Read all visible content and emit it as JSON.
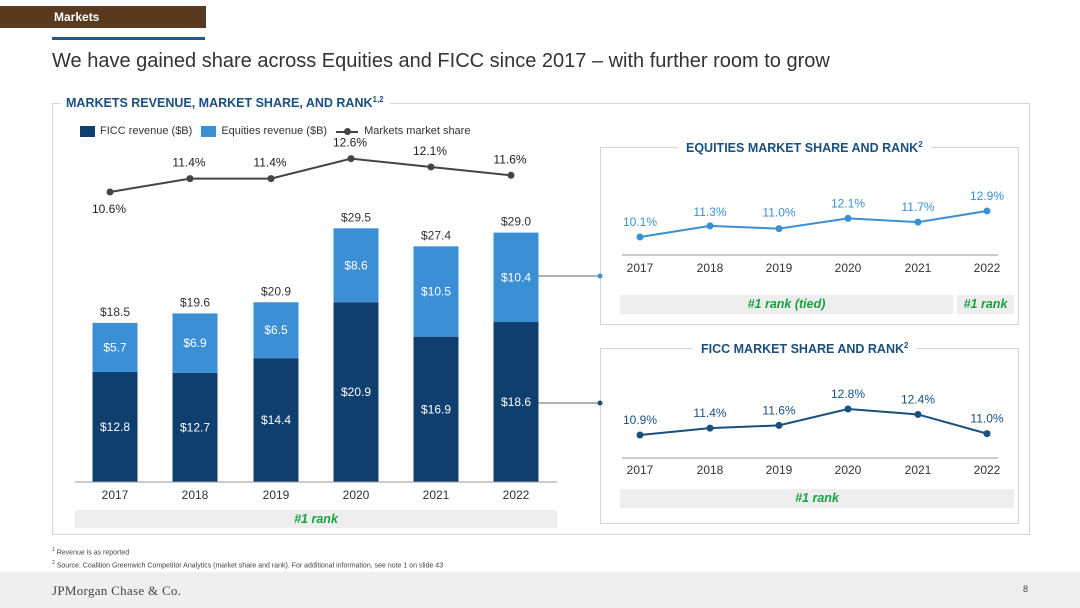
{
  "header": {
    "section": "Markets",
    "title": "We have gained share across Equities and FICC since 2017 – with further room to grow"
  },
  "main_panel": {
    "title": "MARKETS REVENUE, MARKET SHARE, AND RANK",
    "title_sup": "1,2",
    "legend": [
      "FICC revenue ($B)",
      "Equities revenue ($B)",
      "Markets market share"
    ],
    "rank": "#1 rank"
  },
  "equities_panel": {
    "title": "EQUITIES MARKET SHARE AND RANK",
    "title_sup": "2",
    "rank_tied": "#1 rank (tied)",
    "rank": "#1 rank"
  },
  "ficc_panel": {
    "title": "FICC MARKET SHARE AND RANK",
    "title_sup": "2",
    "rank": "#1 rank"
  },
  "chart_data": [
    {
      "type": "bar",
      "stacked": true,
      "categories": [
        "2017",
        "2018",
        "2019",
        "2020",
        "2021",
        "2022"
      ],
      "series": [
        {
          "name": "FICC revenue ($B)",
          "values": [
            12.8,
            12.7,
            14.4,
            20.9,
            16.9,
            18.6
          ],
          "labels": [
            "$12.8",
            "$12.7",
            "$14.4",
            "$20.9",
            "$16.9",
            "$18.6"
          ],
          "color": "#0f3f6e"
        },
        {
          "name": "Equities revenue ($B)",
          "values": [
            5.7,
            6.9,
            6.5,
            8.6,
            10.5,
            10.4
          ],
          "labels": [
            "$5.7",
            "$6.9",
            "$6.5",
            "$8.6",
            "$10.5",
            "$10.4"
          ],
          "color": "#3b8fd4"
        }
      ],
      "totals": [
        "$18.5",
        "$19.6",
        "$20.9",
        "$29.5",
        "$27.4",
        "$29.0"
      ],
      "ylim": [
        0,
        30
      ]
    },
    {
      "type": "line",
      "categories": [
        "2017",
        "2018",
        "2019",
        "2020",
        "2021",
        "2022"
      ],
      "series": [
        {
          "name": "Markets market share",
          "values": [
            10.6,
            11.4,
            11.4,
            12.6,
            12.1,
            11.6
          ],
          "labels": [
            "10.6%",
            "11.4%",
            "11.4%",
            "12.6%",
            "12.1%",
            "11.6%"
          ],
          "color": "#444444"
        }
      ]
    },
    {
      "type": "line",
      "categories": [
        "2017",
        "2018",
        "2019",
        "2020",
        "2021",
        "2022"
      ],
      "series": [
        {
          "values": [
            10.1,
            11.3,
            11.0,
            12.1,
            11.7,
            12.9
          ],
          "labels": [
            "10.1%",
            "11.3%",
            "11.0%",
            "12.1%",
            "11.7%",
            "12.9%"
          ],
          "color": "#3b8fd4"
        }
      ]
    },
    {
      "type": "line",
      "categories": [
        "2017",
        "2018",
        "2019",
        "2020",
        "2021",
        "2022"
      ],
      "series": [
        {
          "values": [
            10.9,
            11.4,
            11.6,
            12.8,
            12.4,
            11.0
          ],
          "labels": [
            "10.9%",
            "11.4%",
            "11.6%",
            "12.8%",
            "12.4%",
            "11.0%"
          ],
          "color": "#1b4f7e"
        }
      ]
    }
  ],
  "footnotes": {
    "note1_num": "1",
    "note1": "Revenue is as reported",
    "note2_num": "2",
    "note2": "Source: Coalition Greenwich Competitor Analytics (market share and rank). For additional information, see note 1 on slide 43"
  },
  "footer": {
    "logo": "JPMorgan Chase & Co.",
    "page": "8"
  }
}
